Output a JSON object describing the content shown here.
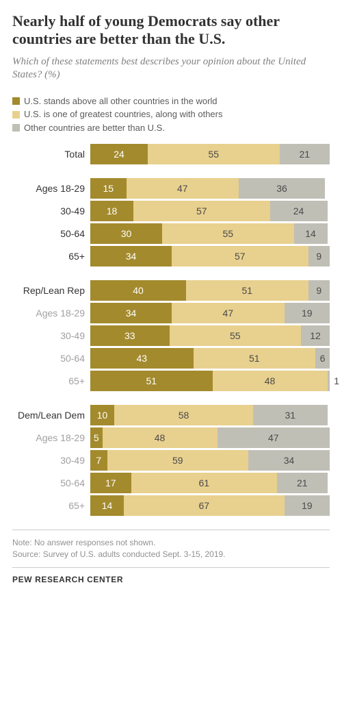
{
  "title": "Nearly half of young Democrats say other countries are better than the U.S.",
  "subtitle": "Which of these statements best describes your opinion about the United States? (%)",
  "legend": {
    "items": [
      {
        "label": "U.S. stands above all other countries in the world",
        "color": "#a38a2c"
      },
      {
        "label": "U.S. is one of greatest countries, along with others",
        "color": "#e8d08e"
      },
      {
        "label": "Other countries are better than U.S.",
        "color": "#c0bfb6"
      }
    ]
  },
  "chart": {
    "colors": {
      "s1": "#a38a2c",
      "s2": "#e8d08e",
      "s3": "#c0bfb6"
    },
    "label_text_dark": "#333333",
    "label_text_gray": "#a0a0a0",
    "max": 100,
    "groups": [
      {
        "rows": [
          {
            "label": "Total",
            "label_color": "dark",
            "vals": [
              24,
              55,
              21
            ]
          }
        ]
      },
      {
        "rows": [
          {
            "label": "Ages 18-29",
            "label_color": "dark",
            "vals": [
              15,
              47,
              36
            ]
          },
          {
            "label": "30-49",
            "label_color": "dark",
            "vals": [
              18,
              57,
              24
            ]
          },
          {
            "label": "50-64",
            "label_color": "dark",
            "vals": [
              30,
              55,
              14
            ]
          },
          {
            "label": "65+",
            "label_color": "dark",
            "vals": [
              34,
              57,
              9
            ]
          }
        ]
      },
      {
        "rows": [
          {
            "label": "Rep/Lean Rep",
            "label_color": "dark",
            "vals": [
              40,
              51,
              9
            ]
          },
          {
            "label": "Ages 18-29",
            "label_color": "gray",
            "vals": [
              34,
              47,
              19
            ]
          },
          {
            "label": "30-49",
            "label_color": "gray",
            "vals": [
              33,
              55,
              12
            ]
          },
          {
            "label": "50-64",
            "label_color": "gray",
            "vals": [
              43,
              51,
              6
            ]
          },
          {
            "label": "65+",
            "label_color": "gray",
            "vals": [
              51,
              48,
              1
            ],
            "outside_last": true
          }
        ]
      },
      {
        "rows": [
          {
            "label": "Dem/Lean Dem",
            "label_color": "dark",
            "vals": [
              10,
              58,
              31
            ]
          },
          {
            "label": "Ages 18-29",
            "label_color": "gray",
            "vals": [
              5,
              48,
              47
            ]
          },
          {
            "label": "30-49",
            "label_color": "gray",
            "vals": [
              7,
              59,
              34
            ]
          },
          {
            "label": "50-64",
            "label_color": "gray",
            "vals": [
              17,
              61,
              21
            ]
          },
          {
            "label": "65+",
            "label_color": "gray",
            "vals": [
              14,
              67,
              19
            ]
          }
        ]
      }
    ]
  },
  "notes": {
    "line1": "Note: No answer responses not shown.",
    "line2": "Source: Survey of U.S. adults conducted Sept. 3-15, 2019."
  },
  "footer": "PEW RESEARCH CENTER"
}
